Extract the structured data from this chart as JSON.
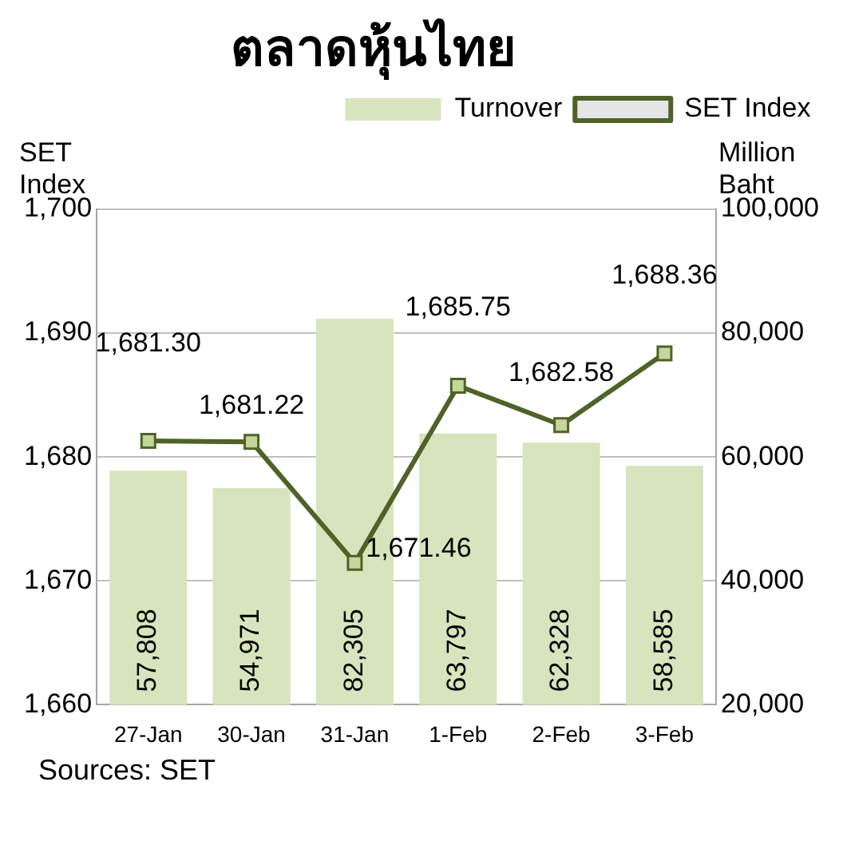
{
  "chart_data": {
    "type": "bar",
    "title": "ตลาดหุ้นไทย",
    "ylabel": "SET Index",
    "y2label": "Million Baht",
    "categories": [
      "27-Jan",
      "30-Jan",
      "31-Jan",
      "1-Feb",
      "2-Feb",
      "3-Feb"
    ],
    "series": [
      {
        "name": "Turnover",
        "axis": "y2",
        "color": "#d7e4bd",
        "values": [
          57808,
          54971,
          82305,
          63797,
          62328,
          58585
        ],
        "value_labels": [
          "57,808",
          "54,971",
          "82,305",
          "63,797",
          "62,328",
          "58,585"
        ]
      },
      {
        "name": "SET Index",
        "type": "line",
        "axis": "y",
        "color": "#4f6228",
        "values": [
          1681.3,
          1681.22,
          1671.46,
          1685.75,
          1682.58,
          1688.36
        ],
        "value_labels": [
          "1,681.30",
          "1,681.22",
          "1,671.46",
          "1,685.75",
          "1,682.58",
          "1,688.36"
        ]
      }
    ],
    "ylim": [
      1660,
      1700
    ],
    "yticks": [
      {
        "value": 1660,
        "label": "1,660"
      },
      {
        "value": 1670,
        "label": "1,670"
      },
      {
        "value": 1680,
        "label": "1,680"
      },
      {
        "value": 1690,
        "label": "1,690"
      },
      {
        "value": 1700,
        "label": "1,700"
      }
    ],
    "y2lim": [
      20000,
      100000
    ],
    "y2ticks": [
      {
        "value": 20000,
        "label": "20,000"
      },
      {
        "value": 40000,
        "label": "40,000"
      },
      {
        "value": 60000,
        "label": "60,000"
      },
      {
        "value": 80000,
        "label": "80,000"
      },
      {
        "value": 100000,
        "label": "100,000"
      }
    ],
    "grid": "y",
    "legend": "top",
    "marker": "square",
    "annotations": [
      "Sources: SET"
    ]
  }
}
